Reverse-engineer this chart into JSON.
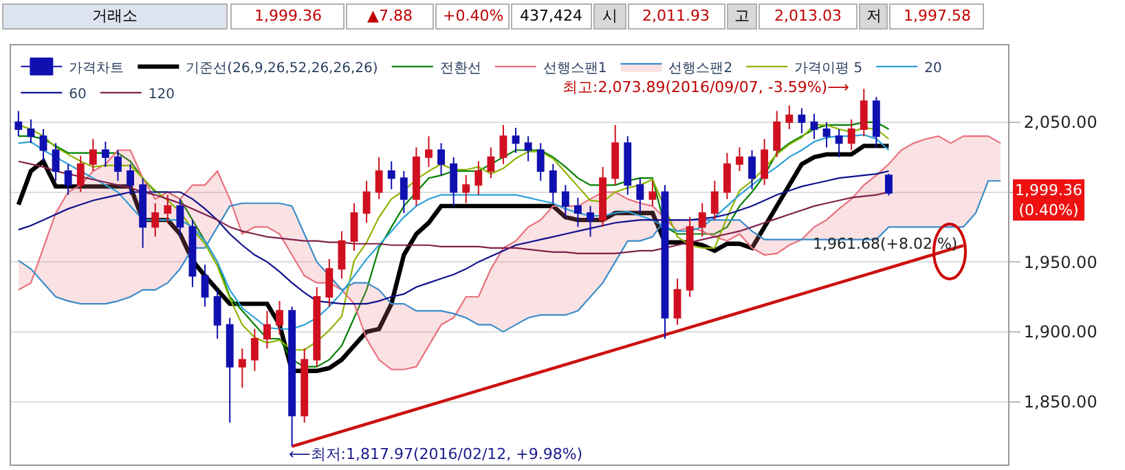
{
  "chart_data": {
    "type": "candlestick",
    "categories": [
      null,
      null,
      null,
      null,
      null,
      null,
      null,
      null,
      null,
      null,
      null,
      null,
      null,
      null,
      null,
      null,
      null,
      null,
      null,
      null,
      null,
      null,
      null,
      null,
      null,
      null,
      null,
      null,
      null,
      null,
      null,
      null,
      null,
      null,
      null,
      null,
      null,
      null,
      null,
      null,
      null,
      null,
      null,
      null,
      null,
      null,
      null,
      null,
      null,
      null,
      null,
      null,
      null,
      null,
      null,
      null,
      null,
      null,
      null,
      null,
      null,
      null,
      null,
      null,
      null,
      null,
      null,
      null,
      null,
      null,
      null,
      null,
      null,
      null,
      null,
      null,
      null,
      null,
      null,
      null
    ],
    "ylim": [
      1805,
      2105
    ],
    "yticks": [
      {
        "value": 1850,
        "label": "1,850.00"
      },
      {
        "value": 1900,
        "label": "1,900.00"
      },
      {
        "value": 1950,
        "label": "1,950.00"
      },
      {
        "value": 2000,
        "label": null
      },
      {
        "value": 2050,
        "label": "2,050.00"
      }
    ],
    "grid": "y",
    "legend": "top left",
    "series": [
      {
        "name": "가격차트",
        "ohlc": [
          [
            2050,
            2058,
            2040,
            2045
          ],
          [
            2045,
            2052,
            2035,
            2040
          ],
          [
            2040,
            2045,
            2022,
            2030
          ],
          [
            2030,
            2035,
            2008,
            2015
          ],
          [
            2015,
            2020,
            1998,
            2005
          ],
          [
            2005,
            2026,
            2000,
            2020
          ],
          [
            2020,
            2038,
            2015,
            2030
          ],
          [
            2030,
            2036,
            2018,
            2025
          ],
          [
            2025,
            2030,
            2008,
            2015
          ],
          [
            2015,
            2020,
            1998,
            2005
          ],
          [
            2005,
            2010,
            1960,
            1975
          ],
          [
            1975,
            1992,
            1968,
            1985
          ],
          [
            1985,
            1998,
            1978,
            1990
          ],
          [
            1990,
            1995,
            1968,
            1975
          ],
          [
            1975,
            1980,
            1932,
            1940
          ],
          [
            1940,
            1948,
            1918,
            1925
          ],
          [
            1925,
            1930,
            1895,
            1905
          ],
          [
            1905,
            1910,
            1835,
            1875
          ],
          [
            1875,
            1888,
            1860,
            1880
          ],
          [
            1880,
            1902,
            1872,
            1895
          ],
          [
            1895,
            1915,
            1888,
            1905
          ],
          [
            1905,
            1922,
            1898,
            1915
          ],
          [
            1915,
            1918,
            1817.97,
            1840
          ],
          [
            1840,
            1888,
            1835,
            1880
          ],
          [
            1880,
            1932,
            1875,
            1925
          ],
          [
            1925,
            1952,
            1918,
            1945
          ],
          [
            1945,
            1972,
            1938,
            1965
          ],
          [
            1965,
            1992,
            1958,
            1985
          ],
          [
            1985,
            2008,
            1978,
            2000
          ],
          [
            2000,
            2025,
            1995,
            2015
          ],
          [
            2015,
            2022,
            2002,
            2010
          ],
          [
            2010,
            2015,
            1985,
            1995
          ],
          [
            1995,
            2032,
            1990,
            2025
          ],
          [
            2025,
            2040,
            2018,
            2030
          ],
          [
            2030,
            2035,
            2012,
            2020
          ],
          [
            2020,
            2025,
            1990,
            2000
          ],
          [
            2000,
            2012,
            1992,
            2005
          ],
          [
            2005,
            2022,
            1998,
            2015
          ],
          [
            2015,
            2032,
            2010,
            2025
          ],
          [
            2025,
            2048,
            2020,
            2040
          ],
          [
            2040,
            2046,
            2028,
            2035
          ],
          [
            2035,
            2040,
            2022,
            2030
          ],
          [
            2030,
            2035,
            2008,
            2015
          ],
          [
            2015,
            2020,
            1992,
            2000
          ],
          [
            2000,
            2005,
            1982,
            1990
          ],
          [
            1990,
            1996,
            1975,
            1985
          ],
          [
            1985,
            1990,
            1968,
            1980
          ],
          [
            1980,
            2018,
            1975,
            2010
          ],
          [
            2010,
            2048,
            2005,
            2035
          ],
          [
            2035,
            2040,
            1998,
            2005
          ],
          [
            2005,
            2010,
            1985,
            1995
          ],
          [
            1995,
            2008,
            1990,
            2000
          ],
          [
            2000,
            2005,
            1895,
            1910
          ],
          [
            1910,
            1938,
            1905,
            1930
          ],
          [
            1930,
            1982,
            1925,
            1975
          ],
          [
            1975,
            1992,
            1968,
            1985
          ],
          [
            1985,
            2008,
            1980,
            2000
          ],
          [
            2000,
            2028,
            1995,
            2020
          ],
          [
            2020,
            2032,
            2015,
            2025
          ],
          [
            2025,
            2030,
            2002,
            2010
          ],
          [
            2010,
            2038,
            2005,
            2030
          ],
          [
            2030,
            2058,
            2025,
            2050
          ],
          [
            2050,
            2062,
            2045,
            2055
          ],
          [
            2055,
            2060,
            2042,
            2050
          ],
          [
            2050,
            2056,
            2038,
            2045
          ],
          [
            2045,
            2050,
            2032,
            2040
          ],
          [
            2040,
            2045,
            2025,
            2035
          ],
          [
            2035,
            2052,
            2030,
            2045
          ],
          [
            2045,
            2073.89,
            2040,
            2065
          ],
          [
            2065,
            2068,
            2032,
            2040
          ],
          [
            2011.93,
            2013.03,
            1997.58,
            1999.36
          ],
          null,
          null,
          null,
          null,
          null,
          null,
          null,
          null,
          null
        ],
        "colors": [
          "#1010b0",
          "#1010b0",
          "#1010b0",
          "#1010b0",
          "#1010b0",
          "#d01020",
          "#d01020",
          "#1010b0",
          "#1010b0",
          "#1010b0",
          "#1010b0",
          "#d01020",
          "#d01020",
          "#1010b0",
          "#1010b0",
          "#1010b0",
          "#1010b0",
          "#1010b0",
          "#d01020",
          "#d01020",
          "#d01020",
          "#d01020",
          "#1010b0",
          "#d01020",
          "#d01020",
          "#d01020",
          "#d01020",
          "#d01020",
          "#d01020",
          "#d01020",
          "#1010b0",
          "#1010b0",
          "#d01020",
          "#d01020",
          "#1010b0",
          "#1010b0",
          "#d01020",
          "#d01020",
          "#d01020",
          "#d01020",
          "#1010b0",
          "#1010b0",
          "#1010b0",
          "#1010b0",
          "#1010b0",
          "#1010b0",
          "#1010b0",
          "#d01020",
          "#d01020",
          "#1010b0",
          "#1010b0",
          "#d01020",
          "#1010b0",
          "#d01020",
          "#d01020",
          "#d01020",
          "#d01020",
          "#d01020",
          "#d01020",
          "#1010b0",
          "#d01020",
          "#d01020",
          "#d01020",
          "#1010b0",
          "#1010b0",
          "#1010b0",
          "#1010b0",
          "#d01020",
          "#d01020",
          "#1010b0",
          "#1010b0",
          null,
          null,
          null,
          null,
          null,
          null,
          null,
          null,
          null
        ]
      },
      {
        "type": "line",
        "name": "기준선(26,9,26,52,26,26,26)",
        "color": "#000000",
        "values": [
          1991,
          2015,
          2022,
          2004,
          2004,
          2004,
          2004,
          2004,
          2004,
          2004,
          1980,
          1980,
          1980,
          1970,
          1951,
          1940,
          1930,
          1920,
          1920,
          1920,
          1920,
          1905,
          1872,
          1872,
          1872,
          1874,
          1880,
          1890,
          1900,
          1902,
          1920,
          1955,
          1970,
          1978,
          1990,
          1990,
          1990,
          1990,
          1990,
          1990,
          1990,
          1990,
          1990,
          1990,
          1982,
          1980,
          1980,
          1980,
          1985,
          1985,
          1985,
          1985,
          1964,
          1964,
          1964,
          1962,
          1958,
          1963,
          1963,
          1960,
          1975,
          1990,
          2005,
          2020,
          2025,
          2027,
          2027,
          2027,
          2033,
          2033,
          2033,
          null,
          null,
          null,
          null,
          null,
          null,
          null,
          null,
          null
        ]
      },
      {
        "type": "line",
        "name": "전환선",
        "color": "#008000",
        "values": [
          2040,
          2040,
          2038,
          2033,
          2028,
          2028,
          2028,
          2028,
          2028,
          2022,
          2010,
          2000,
          2000,
          1995,
          1980,
          1965,
          1950,
          1925,
          1915,
          1905,
          1895,
          1895,
          1880,
          1875,
          1875,
          1880,
          1890,
          1910,
          1930,
          1960,
          1975,
          1990,
          2000,
          2010,
          2012,
          2015,
          2015,
          2015,
          2020,
          2025,
          2030,
          2030,
          2030,
          2025,
          2018,
          2010,
          2005,
          2005,
          2005,
          2008,
          2010,
          2010,
          1975,
          1970,
          1970,
          1970,
          1970,
          1975,
          1990,
          2000,
          2012,
          2028,
          2035,
          2040,
          2045,
          2048,
          2048,
          2048,
          2050,
          2050,
          2045,
          null,
          null,
          null,
          null,
          null,
          null,
          null,
          null,
          null
        ]
      },
      {
        "type": "line",
        "name": "선행스팬1",
        "color": "#e8707c",
        "values": [
          1930,
          1935,
          1960,
          1985,
          2000,
          2005,
          2015,
          2020,
          2030,
          2030,
          2010,
          1995,
          2000,
          1995,
          2005,
          2005,
          2015,
          1995,
          1970,
          1975,
          1975,
          1970,
          1955,
          1940,
          1935,
          1935,
          1930,
          1920,
          1895,
          1880,
          1873,
          1873,
          1875,
          1890,
          1905,
          1910,
          1925,
          1925,
          1945,
          1960,
          1965,
          1975,
          1980,
          1990,
          1990,
          1990,
          1995,
          2000,
          2000,
          1995,
          1992,
          1990,
          null,
          1972,
          1975,
          1972,
          1968,
          1965,
          1970,
          1960,
          1955,
          1956,
          1962,
          1966,
          1975,
          1980,
          1988,
          1995,
          2005,
          2012,
          2020,
          2030,
          2035,
          2038,
          2040,
          2035,
          2040,
          2040,
          2040,
          2035
        ]
      },
      {
        "type": "line",
        "name": "선행스팬2",
        "color": "#3a8cc8",
        "values": [
          1951,
          1945,
          1935,
          1925,
          1922,
          1920,
          1920,
          1920,
          1922,
          1925,
          1930,
          1930,
          1935,
          1945,
          1960,
          1960,
          1975,
          1990,
          1992,
          1992,
          1992,
          1992,
          1990,
          1970,
          1950,
          1940,
          1930,
          1935,
          1935,
          1930,
          1920,
          1920,
          1915,
          1915,
          1915,
          1913,
          1910,
          1905,
          1905,
          1900,
          1905,
          1910,
          1912,
          1912,
          1912,
          1915,
          1925,
          1935,
          1950,
          1965,
          1965,
          1968,
          1980,
          1980,
          1980,
          1980,
          1980,
          1980,
          1980,
          1972,
          1966,
          1966,
          1966,
          1966,
          1966,
          1966,
          1966,
          1966,
          1966,
          1966,
          1975,
          1975,
          1975,
          1975,
          1975,
          1975,
          1975,
          1985,
          2008,
          2008
        ]
      },
      {
        "type": "line",
        "name": "가격이평 5",
        "color": "#8cb400",
        "values": [
          2048,
          2045,
          2040,
          2032,
          2027,
          2022,
          2018,
          2019,
          2019,
          2019,
          2010,
          2001,
          1994,
          1986,
          1973,
          1963,
          1947,
          1924,
          1905,
          1896,
          1892,
          1894,
          1887,
          1887,
          1893,
          1901,
          1911,
          1951,
          1964,
          1982,
          1995,
          2001,
          2009,
          2015,
          2020,
          2016,
          2016,
          2018,
          2013,
          2017,
          2024,
          2029,
          2029,
          2024,
          2014,
          2004,
          1994,
          1993,
          2000,
          2003,
          2005,
          2009,
          null,
          1968,
          1962,
          1960,
          1960,
          1982,
          2001,
          2008,
          2017,
          2027,
          2034,
          2039,
          2048,
          2048,
          2045,
          2043,
          2046,
          2045,
          2038,
          null,
          null,
          null,
          null,
          null,
          null,
          null,
          null,
          null
        ]
      },
      {
        "type": "line",
        "name": "20",
        "color": "#2aa0d8",
        "values": [
          2035,
          2036,
          2030,
          2025,
          2020,
          2015,
          2010,
          2005,
          2000,
          1990,
          1980,
          1980,
          1980,
          1980,
          1975,
          1965,
          1950,
          1930,
          1917,
          1910,
          1903,
          1902,
          1902,
          1905,
          1910,
          1918,
          1928,
          1940,
          1952,
          1962,
          1972,
          1982,
          1990,
          1995,
          1998,
          1998,
          1998,
          1998,
          1998,
          1998,
          1998,
          1996,
          1994,
          1992,
          1988,
          1985,
          1983,
          1983,
          1985,
          1986,
          1983,
          1980,
          1975,
          1972,
          1972,
          1975,
          1982,
          1990,
          1998,
          2005,
          2012,
          2018,
          2025,
          2030,
          2036,
          2039,
          2040,
          2040,
          2041,
          2038,
          2030,
          null,
          null,
          null,
          null,
          null,
          null,
          null,
          null,
          null
        ]
      },
      {
        "type": "line",
        "name": "60",
        "color": "#10108c",
        "values": [
          1973,
          1976,
          1980,
          1984,
          1988,
          1991,
          1994,
          1996,
          1998,
          2000,
          2000,
          2000,
          2000,
          2000,
          1995,
          1988,
          1980,
          1970,
          1962,
          1955,
          1950,
          1943,
          1935,
          1928,
          1922,
          1921,
          1920,
          1920,
          1920,
          1922,
          1925,
          1927,
          1932,
          1935,
          1938,
          1941,
          1945,
          1950,
          1954,
          1958,
          1962,
          1964,
          1966,
          1968,
          1970,
          1972,
          1974,
          1976,
          1978,
          1979,
          1980,
          1980,
          1980,
          1980,
          1980,
          1981,
          1982,
          1984,
          1987,
          1990,
          1994,
          1998,
          2001,
          2004,
          2006,
          2008,
          2010,
          2011,
          2012,
          2013,
          2015,
          null,
          null,
          null,
          null,
          null,
          null,
          null,
          null,
          null
        ]
      },
      {
        "type": "line",
        "name": "120",
        "color": "#80204a",
        "values": [
          2022,
          2020,
          2018,
          2015,
          2013,
          2011,
          2009,
          2007,
          2005,
          2003,
          2000,
          1998,
          1995,
          1992,
          1988,
          1984,
          1980,
          1975,
          1972,
          1970,
          1968,
          1967,
          1966,
          1965,
          1965,
          1964,
          1964,
          1963,
          1963,
          1963,
          1962,
          1962,
          1962,
          1962,
          1961,
          1961,
          1961,
          1961,
          1960,
          1960,
          1960,
          1959,
          1958,
          1957,
          1957,
          1956,
          1956,
          1956,
          1956,
          1957,
          1958,
          1958,
          1960,
          1962,
          1964,
          1966,
          1968,
          1970,
          1972,
          1975,
          1978,
          1981,
          1984,
          1987,
          1990,
          1992,
          1994,
          1996,
          1997,
          1998,
          2000,
          null,
          null,
          null,
          null,
          null,
          null,
          null,
          null,
          null
        ]
      },
      {
        "type": "line",
        "color": "#cc1010",
        "values": [
          null,
          null,
          null,
          null,
          null,
          null,
          null,
          null,
          null,
          null,
          null,
          null,
          null,
          null,
          null,
          null,
          null,
          null,
          null,
          null,
          null,
          null,
          1817.97,
          null,
          null,
          null,
          null,
          null,
          null,
          null,
          null,
          null,
          null,
          null,
          null,
          null,
          null,
          null,
          null,
          null,
          null,
          null,
          null,
          null,
          null,
          null,
          null,
          null,
          null,
          null,
          null,
          null,
          null,
          null,
          null,
          null,
          null,
          null,
          null,
          null,
          null,
          null,
          null,
          null,
          null,
          null,
          null,
          null,
          null,
          null,
          null,
          null,
          null,
          null,
          null,
          null,
          1961.68,
          null,
          null,
          null
        ]
      }
    ],
    "annotations": [
      "거래소",
      "1,999.36",
      "▲7.88",
      "+0.40%",
      "437,424",
      "시",
      "2,011.93",
      "고",
      "2,013.03",
      "저",
      "1,997.58",
      "최고:2,073.89(2016/09/07, -3.59%)⟶",
      "⟵최저:1,817.97(2016/02/12, +9.98%)",
      "1,961.68(+8.02 %)",
      "1,999.36\n(0.40%)"
    ]
  }
}
